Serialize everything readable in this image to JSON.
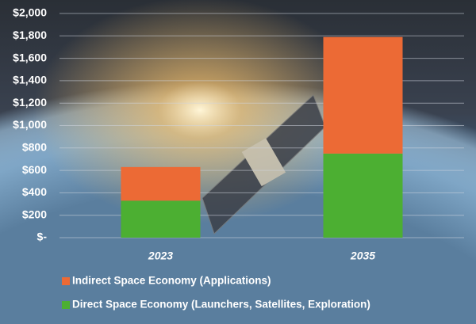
{
  "chart_data": {
    "type": "stacked-bar",
    "categories": [
      "2023",
      "2035"
    ],
    "series": [
      {
        "name": "Direct Space Economy (Launchers, Satellites, Exploration)",
        "color": "#4caf32",
        "values": [
          330,
          750
        ]
      },
      {
        "name": "Indirect Space Economy (Applications)",
        "color": "#ec6a35",
        "values": [
          300,
          1040
        ]
      }
    ],
    "ylim": [
      0,
      2000
    ],
    "yticks": [
      {
        "value": 0,
        "label": "$-"
      },
      {
        "value": 200,
        "label": "$200"
      },
      {
        "value": 400,
        "label": "$400"
      },
      {
        "value": 600,
        "label": "$600"
      },
      {
        "value": 800,
        "label": "$800"
      },
      {
        "value": 1000,
        "label": "$1,000"
      },
      {
        "value": 1200,
        "label": "$1,200"
      },
      {
        "value": 1400,
        "label": "$1,400"
      },
      {
        "value": 1600,
        "label": "$1,600"
      },
      {
        "value": 1800,
        "label": "$1,800"
      },
      {
        "value": 2000,
        "label": "$2,000"
      }
    ],
    "grid": true
  }
}
